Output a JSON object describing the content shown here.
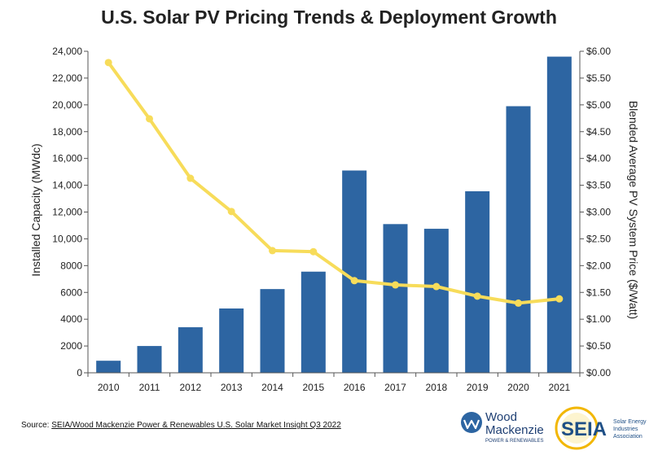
{
  "chart_data": {
    "type": "bar",
    "title": "U.S. Solar PV Pricing Trends & Deployment Growth",
    "categories": [
      "2010",
      "2011",
      "2012",
      "2013",
      "2014",
      "2015",
      "2016",
      "2017",
      "2018",
      "2019",
      "2020",
      "2021"
    ],
    "ylabel": "Installed Capacity (MWdc)",
    "y2label": "Blended Average PV System Price ($/Watt)",
    "ylim": [
      0,
      24000
    ],
    "y2lim": [
      0,
      6
    ],
    "yticks": [
      "0",
      "2000",
      "4000",
      "6000",
      "8000",
      "10,000",
      "12,000",
      "14,000",
      "16,000",
      "18,000",
      "20,000",
      "22,000",
      "24,000"
    ],
    "y2ticks": [
      "$0.00",
      "$0.50",
      "$1.00",
      "$1.50",
      "$2.00",
      "$2.50",
      "$3.00",
      "$3.50",
      "$4.00",
      "$4.50",
      "$5.00",
      "$5.50",
      "$6.00"
    ],
    "series": [
      {
        "type": "bar",
        "axis": "left",
        "color": "#2d65a2",
        "values": [
          900,
          2000,
          3400,
          4800,
          6250,
          7550,
          15100,
          11100,
          10750,
          13550,
          19900,
          23600
        ]
      },
      {
        "type": "line",
        "axis": "right",
        "color": "#f7dc5a",
        "values": [
          5.79,
          4.74,
          3.63,
          3.01,
          2.28,
          2.26,
          1.72,
          1.64,
          1.61,
          1.43,
          1.3,
          1.38
        ]
      }
    ]
  },
  "source": {
    "prefix": "Source: ",
    "link": "SEIA/Wood Mackenzie Power & Renewables U.S. Solar Market Insight Q3 2022"
  },
  "logos": {
    "woodmac_line1": "Wood",
    "woodmac_line2": "Mackenzie",
    "woodmac_tag": "POWER & RENEWABLES",
    "seia_text": "SEIA",
    "seia_tag1": "Solar Energy",
    "seia_tag2": "Industries",
    "seia_tag3": "Association"
  },
  "colors": {
    "bar": "#2d65a2",
    "line": "#f7dc5a",
    "axis": "#555555"
  }
}
